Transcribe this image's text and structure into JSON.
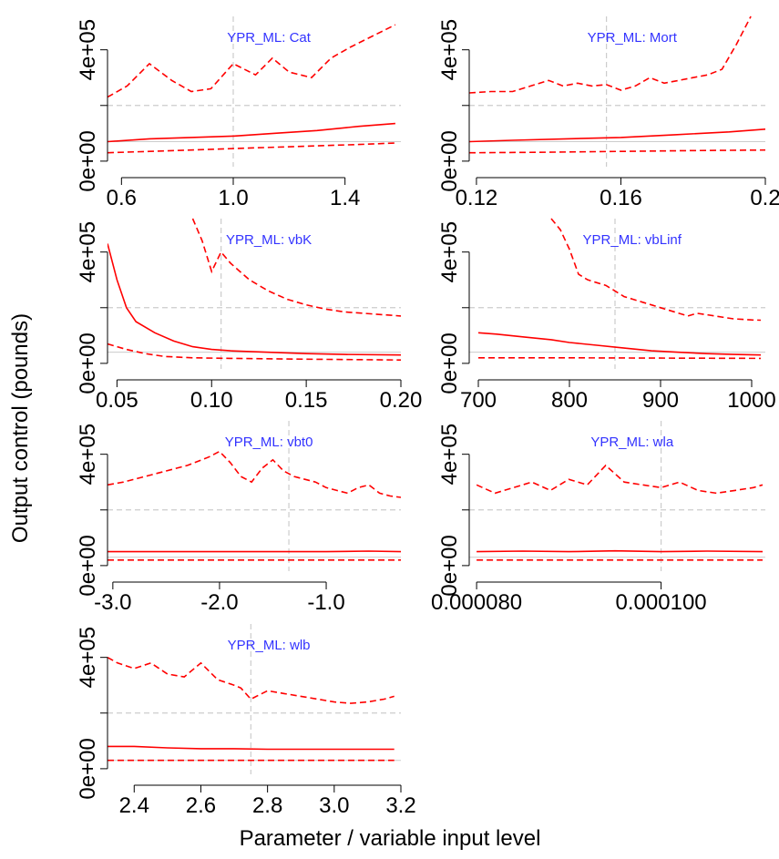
{
  "figure": {
    "ylabel": "Output control (pounds)",
    "xlabel": "Parameter / variable input level"
  },
  "colors": {
    "series": "#ff0000",
    "title": "#3333ff",
    "reference": "#cccccc",
    "axis": "#000000"
  },
  "chart_data": [
    {
      "type": "line",
      "title": "YPR_ML: Cat",
      "xlim": [
        0.55,
        1.6
      ],
      "ylim": [
        -20000,
        520000
      ],
      "xticks": [
        0.6,
        1.0,
        1.4
      ],
      "xtick_labels": [
        "0.6",
        "1.0",
        "1.4"
      ],
      "yticks": [
        0,
        200000,
        400000
      ],
      "ytick_labels": [
        "0e+00",
        "",
        "4e+05"
      ],
      "ref_x": 1.0,
      "ref_y": 200000,
      "baseline": 70000,
      "series": [
        {
          "style": "dashed",
          "x": [
            0.55,
            0.62,
            0.7,
            0.78,
            0.85,
            0.92,
            1.0,
            1.08,
            1.14,
            1.2,
            1.28,
            1.35,
            1.42,
            1.5,
            1.58
          ],
          "y": [
            230000,
            270000,
            350000,
            290000,
            250000,
            260000,
            350000,
            310000,
            370000,
            320000,
            300000,
            370000,
            410000,
            450000,
            490000
          ]
        },
        {
          "style": "solid",
          "x": [
            0.55,
            0.7,
            0.85,
            1.0,
            1.15,
            1.3,
            1.45,
            1.58
          ],
          "y": [
            70000,
            80000,
            85000,
            90000,
            100000,
            110000,
            125000,
            135000
          ]
        },
        {
          "style": "dashed",
          "x": [
            0.55,
            0.7,
            0.85,
            1.0,
            1.15,
            1.3,
            1.45,
            1.58
          ],
          "y": [
            30000,
            35000,
            40000,
            45000,
            50000,
            55000,
            60000,
            65000
          ]
        }
      ]
    },
    {
      "type": "line",
      "title": "YPR_ML: Mort",
      "xlim": [
        0.118,
        0.2
      ],
      "ylim": [
        -20000,
        520000
      ],
      "xticks": [
        0.12,
        0.16,
        0.2
      ],
      "xtick_labels": [
        "0.12",
        "0.16",
        "0.2"
      ],
      "yticks": [
        0,
        200000,
        400000
      ],
      "ytick_labels": [
        "0e+00",
        "",
        "4e+05"
      ],
      "ref_x": 0.156,
      "ref_y": 200000,
      "baseline": 70000,
      "series": [
        {
          "style": "dashed",
          "x": [
            0.118,
            0.124,
            0.13,
            0.135,
            0.14,
            0.144,
            0.148,
            0.152,
            0.156,
            0.16,
            0.164,
            0.168,
            0.172,
            0.176,
            0.18,
            0.184,
            0.188,
            0.192,
            0.196
          ],
          "y": [
            245000,
            250000,
            250000,
            270000,
            290000,
            270000,
            280000,
            270000,
            275000,
            255000,
            270000,
            300000,
            280000,
            290000,
            300000,
            310000,
            330000,
            420000,
            520000
          ]
        },
        {
          "style": "solid",
          "x": [
            0.118,
            0.13,
            0.145,
            0.16,
            0.175,
            0.19,
            0.2
          ],
          "y": [
            70000,
            75000,
            80000,
            85000,
            95000,
            105000,
            115000
          ]
        },
        {
          "style": "dashed",
          "x": [
            0.118,
            0.14,
            0.16,
            0.18,
            0.2
          ],
          "y": [
            30000,
            32000,
            35000,
            38000,
            40000
          ]
        }
      ]
    },
    {
      "type": "line",
      "title": "YPR_ML: vbK",
      "xlim": [
        0.045,
        0.2
      ],
      "ylim": [
        -20000,
        520000
      ],
      "xticks": [
        0.05,
        0.1,
        0.15,
        0.2
      ],
      "xtick_labels": [
        "0.05",
        "0.10",
        "0.15",
        "0.20"
      ],
      "yticks": [
        0,
        200000,
        400000
      ],
      "ytick_labels": [
        "0e+00",
        "",
        "4e+05"
      ],
      "ref_x": 0.105,
      "ref_y": 200000,
      "baseline": 40000,
      "series": [
        {
          "style": "dashed",
          "x": [
            0.09,
            0.095,
            0.1,
            0.105,
            0.11,
            0.115,
            0.12,
            0.13,
            0.14,
            0.15,
            0.16,
            0.17,
            0.18,
            0.19,
            0.2
          ],
          "y": [
            520000,
            440000,
            330000,
            400000,
            360000,
            330000,
            300000,
            260000,
            230000,
            210000,
            195000,
            185000,
            180000,
            175000,
            170000
          ]
        },
        {
          "style": "solid",
          "x": [
            0.045,
            0.05,
            0.055,
            0.06,
            0.07,
            0.08,
            0.09,
            0.1,
            0.11,
            0.13,
            0.15,
            0.17,
            0.2
          ],
          "y": [
            430000,
            300000,
            200000,
            150000,
            110000,
            80000,
            60000,
            50000,
            45000,
            40000,
            35000,
            32000,
            30000
          ]
        },
        {
          "style": "dashed",
          "x": [
            0.045,
            0.055,
            0.065,
            0.075,
            0.09,
            0.11,
            0.15,
            0.2
          ],
          "y": [
            70000,
            50000,
            35000,
            25000,
            20000,
            18000,
            15000,
            12000
          ]
        }
      ]
    },
    {
      "type": "line",
      "title": "YPR_ML: vbLinf",
      "xlim": [
        690,
        1015
      ],
      "ylim": [
        -20000,
        520000
      ],
      "xticks": [
        700,
        800,
        900,
        1000
      ],
      "xtick_labels": [
        "700",
        "800",
        "900",
        "1000"
      ],
      "yticks": [
        0,
        200000,
        400000
      ],
      "ytick_labels": [
        "0e+00",
        "",
        "4e+05"
      ],
      "ref_x": 850,
      "ref_y": 200000,
      "baseline": 40000,
      "series": [
        {
          "style": "dashed",
          "x": [
            780,
            790,
            800,
            810,
            820,
            830,
            840,
            850,
            860,
            870,
            880,
            890,
            900,
            910,
            920,
            930,
            940,
            950,
            960,
            970,
            980,
            990,
            1000,
            1010
          ],
          "y": [
            520000,
            480000,
            410000,
            320000,
            300000,
            290000,
            280000,
            260000,
            240000,
            230000,
            220000,
            210000,
            200000,
            190000,
            180000,
            170000,
            180000,
            175000,
            170000,
            165000,
            160000,
            158000,
            156000,
            155000
          ]
        },
        {
          "style": "solid",
          "x": [
            700,
            720,
            750,
            780,
            800,
            830,
            860,
            890,
            920,
            950,
            980,
            1010
          ],
          "y": [
            110000,
            105000,
            95000,
            85000,
            75000,
            65000,
            55000,
            45000,
            40000,
            35000,
            32000,
            30000
          ]
        },
        {
          "style": "dashed",
          "x": [
            700,
            800,
            900,
            1010
          ],
          "y": [
            20000,
            20000,
            19000,
            18000
          ]
        }
      ]
    },
    {
      "type": "line",
      "title": "YPR_ML: vbt0",
      "xlim": [
        -3.05,
        -0.3
      ],
      "ylim": [
        -20000,
        520000
      ],
      "xticks": [
        -3.0,
        -2.0,
        -1.0
      ],
      "xtick_labels": [
        "-3.0",
        "-2.0",
        "-1.0"
      ],
      "yticks": [
        0,
        200000,
        400000
      ],
      "ytick_labels": [
        "0e+00",
        "",
        "4e+05"
      ],
      "ref_x": -1.35,
      "ref_y": 200000,
      "baseline": 30000,
      "series": [
        {
          "style": "dashed",
          "x": [
            -3.05,
            -2.9,
            -2.7,
            -2.5,
            -2.3,
            -2.1,
            -2.0,
            -1.9,
            -1.8,
            -1.7,
            -1.6,
            -1.5,
            -1.4,
            -1.3,
            -1.2,
            -1.1,
            -1.0,
            -0.9,
            -0.8,
            -0.7,
            -0.6,
            -0.5,
            -0.4,
            -0.3
          ],
          "y": [
            290000,
            300000,
            320000,
            340000,
            360000,
            390000,
            410000,
            370000,
            320000,
            300000,
            350000,
            380000,
            340000,
            320000,
            310000,
            300000,
            280000,
            270000,
            260000,
            280000,
            290000,
            260000,
            250000,
            245000
          ]
        },
        {
          "style": "solid",
          "x": [
            -3.05,
            -2.0,
            -1.0,
            -0.6,
            -0.3
          ],
          "y": [
            50000,
            50000,
            50000,
            52000,
            50000
          ]
        },
        {
          "style": "dashed",
          "x": [
            -3.05,
            -2.0,
            -1.0,
            -0.3
          ],
          "y": [
            20000,
            20000,
            20000,
            20000
          ]
        }
      ]
    },
    {
      "type": "line",
      "title": "YPR_ML: wla",
      "xlim": [
        7.92e-05,
        0.0001113
      ],
      "ylim": [
        -20000,
        520000
      ],
      "xticks": [
        8e-05,
        0.0001
      ],
      "xtick_labels": [
        "0.000080",
        "0.000100"
      ],
      "yticks": [
        0,
        200000,
        400000
      ],
      "ytick_labels": [
        "0e+00",
        "",
        "4e+05"
      ],
      "ref_x": 0.0001,
      "ref_y": 200000,
      "baseline": 30000,
      "series": [
        {
          "style": "dashed",
          "x": [
            8e-05,
            8.2e-05,
            8.4e-05,
            8.6e-05,
            8.8e-05,
            9e-05,
            9.2e-05,
            9.4e-05,
            9.6e-05,
            9.8e-05,
            0.0001,
            0.000102,
            0.000104,
            0.000106,
            0.000108,
            0.00011,
            0.000111
          ],
          "y": [
            290000,
            260000,
            280000,
            300000,
            270000,
            310000,
            290000,
            360000,
            300000,
            290000,
            280000,
            300000,
            270000,
            260000,
            270000,
            280000,
            290000
          ]
        },
        {
          "style": "solid",
          "x": [
            8e-05,
            8.5e-05,
            9e-05,
            9.5e-05,
            0.0001,
            0.000105,
            0.000111
          ],
          "y": [
            50000,
            52000,
            50000,
            53000,
            50000,
            52000,
            50000
          ]
        },
        {
          "style": "dashed",
          "x": [
            8e-05,
            9.5e-05,
            0.000111
          ],
          "y": [
            20000,
            20000,
            20000
          ]
        }
      ]
    },
    {
      "type": "line",
      "title": "YPR_ML: wlb",
      "xlim": [
        2.32,
        3.2
      ],
      "ylim": [
        -20000,
        520000
      ],
      "xticks": [
        2.4,
        2.6,
        2.8,
        3.0,
        3.2
      ],
      "xtick_labels": [
        "2.4",
        "2.6",
        "2.8",
        "3.0",
        "3.2"
      ],
      "yticks": [
        0,
        200000,
        400000
      ],
      "ytick_labels": [
        "0e+00",
        "",
        "4e+05"
      ],
      "ref_x": 2.75,
      "ref_y": 200000,
      "baseline": 30000,
      "series": [
        {
          "style": "dashed",
          "x": [
            2.32,
            2.35,
            2.4,
            2.45,
            2.5,
            2.55,
            2.6,
            2.65,
            2.7,
            2.72,
            2.75,
            2.8,
            2.85,
            2.9,
            2.95,
            3.0,
            3.05,
            3.1,
            3.15,
            3.18
          ],
          "y": [
            400000,
            380000,
            360000,
            380000,
            340000,
            330000,
            380000,
            320000,
            300000,
            290000,
            250000,
            280000,
            270000,
            260000,
            250000,
            240000,
            235000,
            240000,
            250000,
            260000
          ]
        },
        {
          "style": "solid",
          "x": [
            2.32,
            2.4,
            2.5,
            2.6,
            2.7,
            2.8,
            2.9,
            3.0,
            3.1,
            3.18
          ],
          "y": [
            80000,
            80000,
            75000,
            72000,
            72000,
            70000,
            70000,
            70000,
            70000,
            70000
          ]
        },
        {
          "style": "dashed",
          "x": [
            2.32,
            2.6,
            2.9,
            3.18
          ],
          "y": [
            30000,
            30000,
            30000,
            30000
          ]
        }
      ]
    }
  ]
}
